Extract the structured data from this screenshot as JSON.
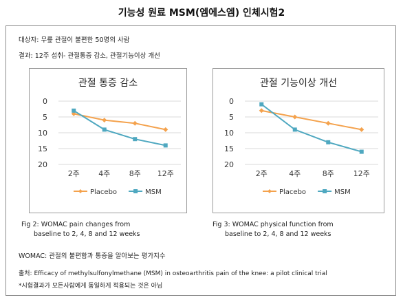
{
  "page_title": "기능성 원료 MSM(엠에스엠) 인체시험2",
  "subject_line": "대상자: 무릎 관절이 불편한 50명의 사람",
  "result_line": "결과: 12주 섭취- 관절통증 감소, 관절기능이상 개선",
  "colors": {
    "placebo": "#f4a24d",
    "msm": "#4fa8c0",
    "grid": "#d9d9d9",
    "axis": "#bfbfbf"
  },
  "chart_data": [
    {
      "type": "line",
      "title": "관절 통증 감소",
      "categories": [
        "2주",
        "4주",
        "8주",
        "12주"
      ],
      "ylim": [
        0,
        20
      ],
      "y_inverted": true,
      "y_ticks": [
        "0",
        "5",
        "10",
        "15",
        "20"
      ],
      "grid": true,
      "legend_position": "bottom",
      "series": [
        {
          "name": "Placebo",
          "values": [
            4,
            6,
            7,
            9
          ],
          "color": "#f4a24d",
          "marker": "diamond"
        },
        {
          "name": "MSM",
          "values": [
            3,
            9,
            12,
            14
          ],
          "color": "#4fa8c0",
          "marker": "square"
        }
      ],
      "caption": [
        "Fig 2: WOMAC pain changes from",
        "baseline to 2, 4, 8 and 12 weeks"
      ]
    },
    {
      "type": "line",
      "title": "관절 기능이상 개선",
      "categories": [
        "2주",
        "4주",
        "8주",
        "12주"
      ],
      "ylim": [
        0,
        20
      ],
      "y_inverted": true,
      "y_ticks": [
        "0",
        "5",
        "10",
        "15",
        "20"
      ],
      "grid": true,
      "legend_position": "bottom",
      "series": [
        {
          "name": "Placebo",
          "values": [
            3,
            5,
            7,
            9
          ],
          "color": "#f4a24d",
          "marker": "diamond"
        },
        {
          "name": "MSM",
          "values": [
            1,
            9,
            13,
            16
          ],
          "color": "#4fa8c0",
          "marker": "square"
        }
      ],
      "caption": [
        "Fig 3: WOMAC physical function from",
        "baseline to 2, 4, 8 and 12 weeks"
      ]
    }
  ],
  "womac_note": "WOMAC: 관절의 불편함과 통증을 알아보는 평가지수",
  "source_line": "출처: Efficacy of methylsulfonylmethane (MSM) in osteoarthritis pain of the knee: a pilot clinical trial",
  "disclaimer": "*시험결과가 모든사람에게 동일하게 적용되는 것은 아님"
}
